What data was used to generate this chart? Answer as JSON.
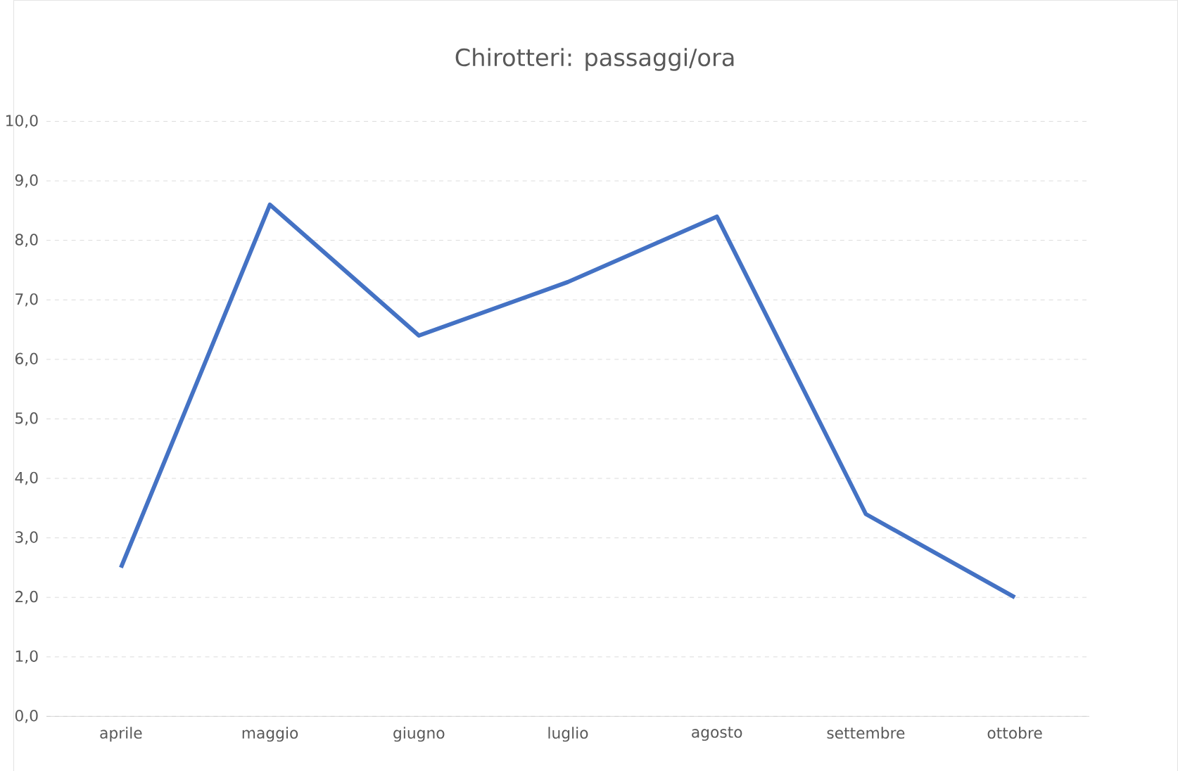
{
  "chart_data": {
    "type": "line",
    "title": "Chirotteri: passaggi/ora",
    "categories": [
      "aprile",
      "maggio",
      "giugno",
      "luglio",
      "agosto",
      "settembre",
      "ottobre"
    ],
    "values": [
      2.5,
      8.6,
      6.4,
      7.3,
      8.4,
      3.4,
      2.0
    ],
    "color": "#4472c4",
    "ylim": [
      0,
      10
    ],
    "yticks": [
      {
        "value": 0,
        "label": "0,0"
      },
      {
        "value": 1,
        "label": "1,0"
      },
      {
        "value": 2,
        "label": "2,0"
      },
      {
        "value": 3,
        "label": "3,0"
      },
      {
        "value": 4,
        "label": "4,0"
      },
      {
        "value": 5,
        "label": "5,0"
      },
      {
        "value": 6,
        "label": "6,0"
      },
      {
        "value": 7,
        "label": "7,0"
      },
      {
        "value": 8,
        "label": "8,0"
      },
      {
        "value": 9,
        "label": "9,0"
      },
      {
        "value": 10,
        "label": "10,0"
      }
    ],
    "grid": "y",
    "marker": "none",
    "line_style": "solid"
  }
}
